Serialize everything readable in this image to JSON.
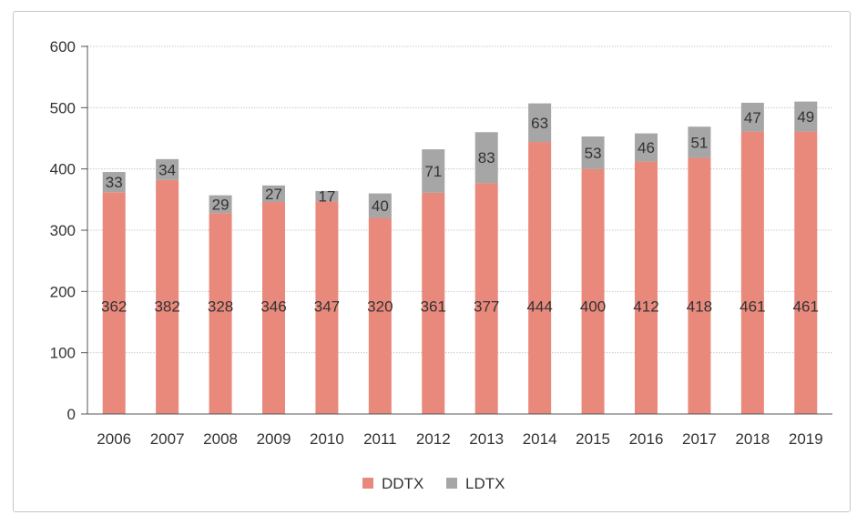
{
  "chart_data": {
    "type": "bar",
    "stacked": true,
    "categories": [
      "2006",
      "2007",
      "2008",
      "2009",
      "2010",
      "2011",
      "2012",
      "2013",
      "2014",
      "2015",
      "2016",
      "2017",
      "2018",
      "2019"
    ],
    "series": [
      {
        "name": "DDTX",
        "color": "#e8897c",
        "values": [
          362,
          382,
          328,
          346,
          347,
          320,
          361,
          377,
          444,
          400,
          412,
          418,
          461,
          461
        ]
      },
      {
        "name": "LDTX",
        "color": "#a6a6a6",
        "values": [
          33,
          34,
          29,
          27,
          17,
          40,
          71,
          83,
          63,
          53,
          46,
          51,
          47,
          49
        ]
      }
    ],
    "title": "",
    "xlabel": "",
    "ylabel": "",
    "ylim": [
      0,
      600
    ],
    "yticks": [
      0,
      100,
      200,
      300,
      400,
      500,
      600
    ],
    "grid": true,
    "legend_position": "bottom-center"
  }
}
